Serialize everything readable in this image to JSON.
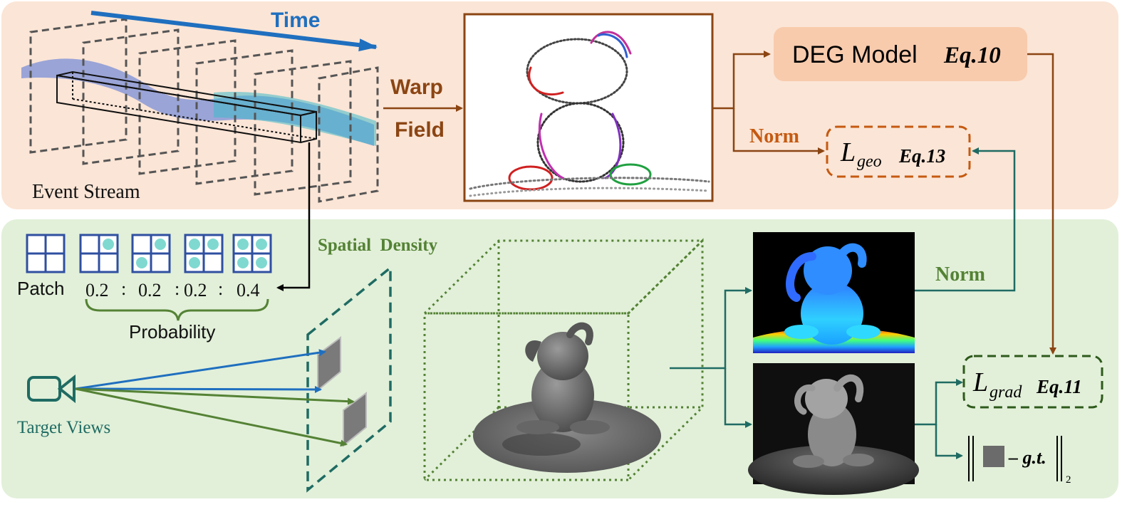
{
  "top_panel": {
    "time_label": "Time",
    "event_stream_label": "Event Stream",
    "warp_label": "Warp",
    "field_label": "Field",
    "deg_model": {
      "name": "DEG Model",
      "eq": "Eq.10"
    },
    "norm_label": "Norm",
    "loss_geo": {
      "symbol": "L",
      "subscript": "geo",
      "eq": "Eq.13"
    }
  },
  "bottom_panel": {
    "patch_label": "Patch",
    "probabilities": [
      "0.2",
      ":",
      "0.2",
      ":",
      "0.2",
      ":",
      "0.4"
    ],
    "probability_label": "Probability",
    "spatial_density_label": "Spatial  Density",
    "target_views_label": "Target Views",
    "norm_label": "Norm",
    "loss_grad": {
      "symbol": "L",
      "subscript": "grad",
      "eq": "Eq.11"
    },
    "gt_norm": {
      "text": "– g.t.",
      "subscript": "2"
    }
  },
  "colors": {
    "top_bg": "#fbe5d6",
    "bottom_bg": "#e2f0d9",
    "brown": "#8b4513",
    "orange": "#c55a11",
    "green": "#548235",
    "teal": "#1f6b63",
    "blue": "#1f6fbf",
    "patch_blue": "#2f4fa0",
    "dot_cyan": "#7fd9d0",
    "deg_box": "#f8cbad"
  }
}
